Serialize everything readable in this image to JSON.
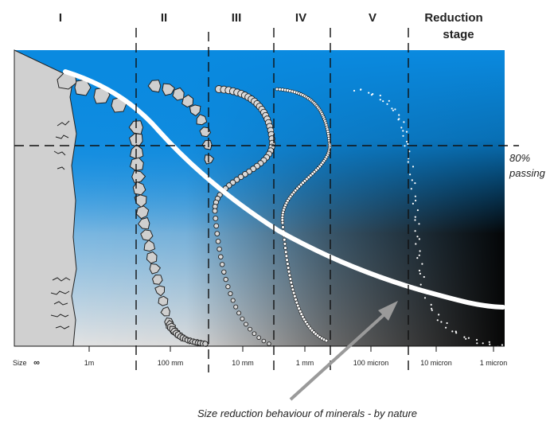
{
  "stage_labels": [
    "I",
    "II",
    "III",
    "IV",
    "V"
  ],
  "reduction_stage_label": {
    "line1": "Reduction",
    "line2": "stage"
  },
  "passing_label": {
    "line1": "80%",
    "line2": "passing"
  },
  "size_axis": {
    "label": "Size",
    "ticks": [
      "∞",
      "1m",
      "100 mm",
      "10 mm",
      "1 mm",
      "100 micron",
      "10 micron",
      "1 micron"
    ]
  },
  "caption": "Size reduction behaviour of minerals -  by nature",
  "colors": {
    "top_blue": "#0a8ae0",
    "mid_blue": "#3a9be0",
    "dark": "#000000",
    "light": "#e6e6e6",
    "rock": "#cfcfcf",
    "curve": "#ffffff",
    "arrow": "#9a9a9a"
  }
}
